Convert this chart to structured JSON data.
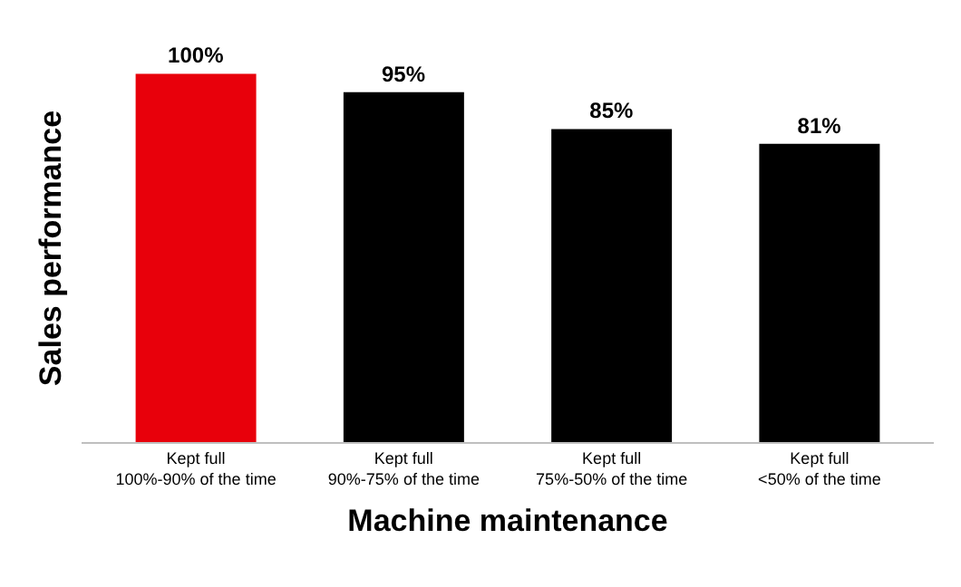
{
  "chart_data": {
    "type": "bar",
    "xlabel": "Machine maintenance",
    "ylabel": "Sales performance",
    "categories": [
      "Kept full\n100%-90% of the time",
      "Kept full\n90%-75% of the time",
      "Kept full\n75%-50% of the time",
      "Kept full\n<50% of the time"
    ],
    "values": [
      100,
      95,
      85,
      81
    ],
    "value_labels": [
      "100%",
      "95%",
      "85%",
      "81%"
    ],
    "colors": [
      "#e8000b",
      "#000000",
      "#000000",
      "#000000"
    ]
  }
}
